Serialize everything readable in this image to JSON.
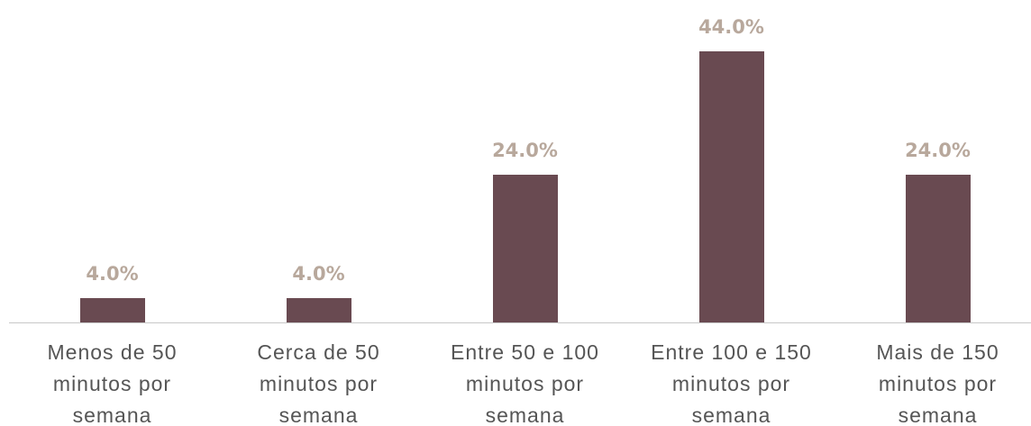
{
  "chart_data": {
    "type": "bar",
    "categories": [
      "Menos de 50 minutos por semana",
      "Cerca de 50 minutos por semana",
      "Entre 50 e 100 minutos por semana",
      "Entre 100 e 150 minutos por semana",
      "Mais de 150 minutos por semana"
    ],
    "values": [
      4,
      4,
      24,
      44,
      24
    ],
    "value_labels": [
      "4.0%",
      "4.0%",
      "24.0%",
      "44.0%",
      "24.0%"
    ],
    "color": "#694a51"
  }
}
